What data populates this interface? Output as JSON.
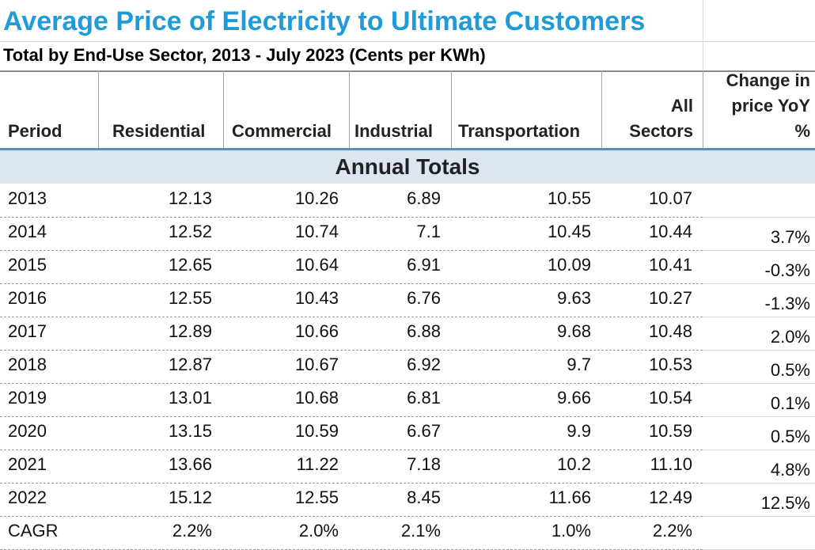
{
  "title": "Average Price of Electricity to Ultimate Customers",
  "subtitle": "Total by End-Use Sector, 2013 - July 2023 (Cents per KWh)",
  "header": {
    "period": "Period",
    "residential": "Residential",
    "commercial": "Commercial",
    "industrial": "Industrial",
    "transportation": "Transportation",
    "all_sectors_line1": "All",
    "all_sectors_line2": "Sectors",
    "change_line1": "Change in",
    "change_line2": "price YoY",
    "change_line3": "%"
  },
  "section_label": "Annual Totals",
  "rows": [
    {
      "period": "2013",
      "residential": "12.13",
      "commercial": "10.26",
      "industrial": "6.89",
      "transportation": "10.55",
      "all": "10.07",
      "change": ""
    },
    {
      "period": "2014",
      "residential": "12.52",
      "commercial": "10.74",
      "industrial": "7.1",
      "transportation": "10.45",
      "all": "10.44",
      "change": "3.7%"
    },
    {
      "period": "2015",
      "residential": "12.65",
      "commercial": "10.64",
      "industrial": "6.91",
      "transportation": "10.09",
      "all": "10.41",
      "change": "-0.3%"
    },
    {
      "period": "2016",
      "residential": "12.55",
      "commercial": "10.43",
      "industrial": "6.76",
      "transportation": "9.63",
      "all": "10.27",
      "change": "-1.3%"
    },
    {
      "period": "2017",
      "residential": "12.89",
      "commercial": "10.66",
      "industrial": "6.88",
      "transportation": "9.68",
      "all": "10.48",
      "change": "2.0%"
    },
    {
      "period": "2018",
      "residential": "12.87",
      "commercial": "10.67",
      "industrial": "6.92",
      "transportation": "9.7",
      "all": "10.53",
      "change": "0.5%"
    },
    {
      "period": "2019",
      "residential": "13.01",
      "commercial": "10.68",
      "industrial": "6.81",
      "transportation": "9.66",
      "all": "10.54",
      "change": "0.1%"
    },
    {
      "period": "2020",
      "residential": "13.15",
      "commercial": "10.59",
      "industrial": "6.67",
      "transportation": "9.9",
      "all": "10.59",
      "change": "0.5%"
    },
    {
      "period": "2021",
      "residential": "13.66",
      "commercial": "11.22",
      "industrial": "7.18",
      "transportation": "10.2",
      "all": "11.10",
      "change": "4.8%"
    },
    {
      "period": "2022",
      "residential": "15.12",
      "commercial": "12.55",
      "industrial": "8.45",
      "transportation": "11.66",
      "all": "12.49",
      "change": "12.5%"
    },
    {
      "period": "CAGR",
      "residential": "2.2%",
      "commercial": "2.0%",
      "industrial": "2.1%",
      "transportation": "1.0%",
      "all": "2.2%",
      "change": ""
    }
  ]
}
